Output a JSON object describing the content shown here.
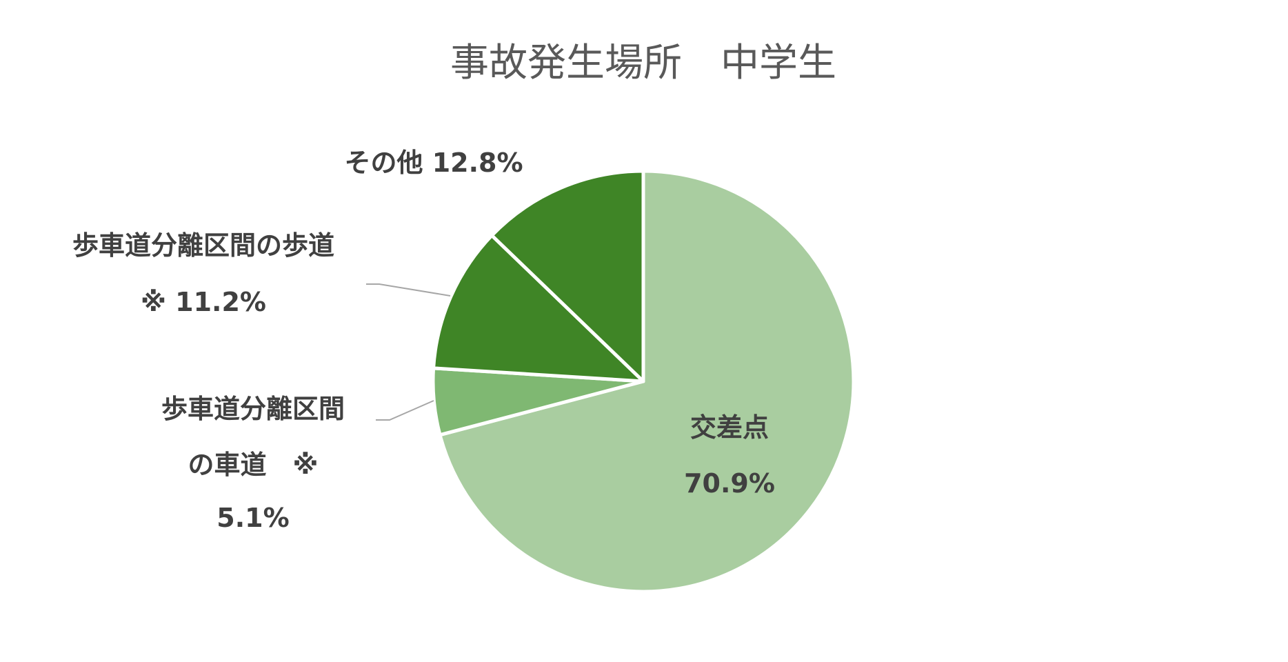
{
  "chart_data": {
    "type": "pie",
    "title": "事故発生場所　中学生",
    "slices": [
      {
        "label": "交差点",
        "value": 70.9,
        "value_label": "70.9%",
        "color": "#a9cda0"
      },
      {
        "label": "歩車道分離区間の車道 ※",
        "label_lines": [
          "歩車道分離区間",
          "の車道　※"
        ],
        "value": 5.1,
        "value_label": "5.1%",
        "color": "#7fb872"
      },
      {
        "label": "歩車道分離区間の歩道 ※",
        "label_lines": [
          "歩車道分離区間の歩道"
        ],
        "prefix": "※",
        "value": 11.2,
        "value_label": "11.2%",
        "color": "#3f8526"
      },
      {
        "label": "その他",
        "value": 12.8,
        "value_label": "12.8%",
        "color": "#3f8526"
      }
    ],
    "start_angle": "12 o'clock",
    "direction": "clockwise",
    "legend": "none"
  }
}
